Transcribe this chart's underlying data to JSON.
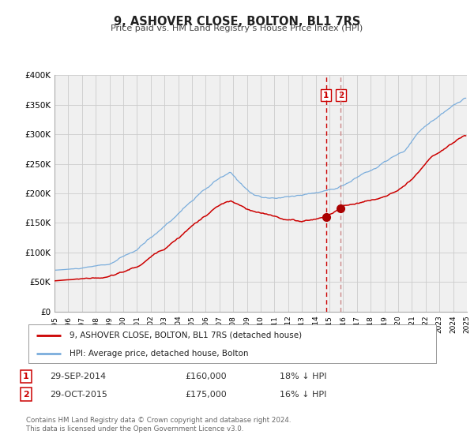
{
  "title": "9, ASHOVER CLOSE, BOLTON, BL1 7RS",
  "subtitle": "Price paid vs. HM Land Registry’s House Price Index (HPI)",
  "hpi_color": "#7aaddc",
  "price_color": "#cc0000",
  "marker_color": "#aa0000",
  "vline1_color": "#cc0000",
  "vline2_color": "#cc8888",
  "grid_color": "#cccccc",
  "bg_color": "#f0f0f0",
  "ylim": [
    0,
    400000
  ],
  "yticks": [
    0,
    50000,
    100000,
    150000,
    200000,
    250000,
    300000,
    350000,
    400000
  ],
  "ytick_labels": [
    "£0",
    "£50K",
    "£100K",
    "£150K",
    "£200K",
    "£250K",
    "£300K",
    "£350K",
    "£400K"
  ],
  "xstart": 1995,
  "xend": 2025,
  "transaction1_date": 2014.75,
  "transaction1_price": 160000,
  "transaction2_date": 2015.833,
  "transaction2_price": 175000,
  "legend_label_red": "9, ASHOVER CLOSE, BOLTON, BL1 7RS (detached house)",
  "legend_label_blue": "HPI: Average price, detached house, Bolton",
  "table_row1": [
    "1",
    "29-SEP-2014",
    "£160,000",
    "18% ↓ HPI"
  ],
  "table_row2": [
    "2",
    "29-OCT-2015",
    "£175,000",
    "16% ↓ HPI"
  ],
  "footer": "Contains HM Land Registry data © Crown copyright and database right 2024.\nThis data is licensed under the Open Government Licence v3.0."
}
